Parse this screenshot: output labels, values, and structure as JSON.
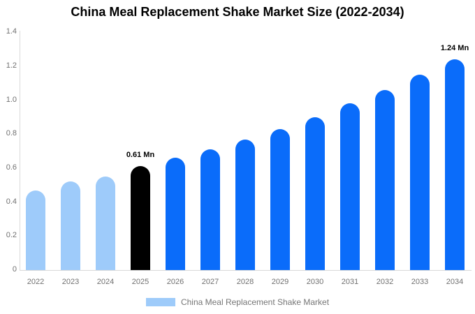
{
  "chart_data": {
    "type": "bar",
    "title": "China Meal Replacement Shake Market Size (2022-2034)",
    "categories": [
      "2022",
      "2023",
      "2024",
      "2025",
      "2026",
      "2027",
      "2028",
      "2029",
      "2030",
      "2031",
      "2032",
      "2033",
      "2034"
    ],
    "values": [
      0.47,
      0.52,
      0.55,
      0.61,
      0.66,
      0.71,
      0.77,
      0.83,
      0.9,
      0.98,
      1.06,
      1.15,
      1.24
    ],
    "unit": "Mn",
    "xlabel": "",
    "ylabel": "",
    "ylim": [
      0,
      1.4
    ],
    "y_ticks": [
      "0",
      "0.2",
      "0.4",
      "0.6",
      "0.8",
      "1.0",
      "1.2",
      "1.4"
    ],
    "grid": false,
    "legend": {
      "position": "bottom",
      "label": "China Meal Replacement Shake Market",
      "swatch_color": "#9ecbfa"
    },
    "annotations": [
      {
        "category": "2025",
        "text": "0.61 Mn"
      },
      {
        "category": "2034",
        "text": "1.24 Mn"
      }
    ],
    "colors": {
      "historical_bar": "#9ecbfa",
      "base_year_bar": "#000000",
      "forecast_bar": "#0a6cfa",
      "axis_line": "#d9d9d9",
      "tick_text": "#707070",
      "legend_text": "#757575",
      "title_text": "#000000",
      "background": "#ffffff"
    },
    "bar_colors": [
      "#9ecbfa",
      "#9ecbfa",
      "#9ecbfa",
      "#000000",
      "#0a6cfa",
      "#0a6cfa",
      "#0a6cfa",
      "#0a6cfa",
      "#0a6cfa",
      "#0a6cfa",
      "#0a6cfa",
      "#0a6cfa",
      "#0a6cfa"
    ]
  }
}
